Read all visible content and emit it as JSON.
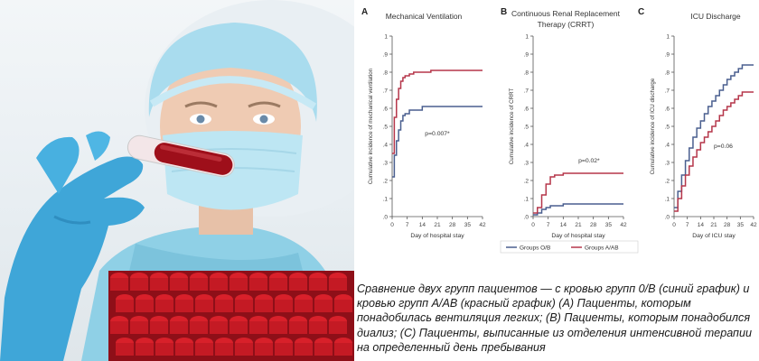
{
  "colors": {
    "group_0b": "#4a5f8f",
    "group_aab": "#b5364a",
    "axis": "#555555",
    "glove": "#3fa6d8",
    "tube_cap": "#d8202a"
  },
  "photo": {
    "description_icon": "lab-worker-photo"
  },
  "chart_data": [
    {
      "type": "line",
      "panel": "A",
      "title": "Mechanical Ventilation",
      "xlabel": "Day of hospital stay",
      "ylabel": "Cumulative incidence of mechanical ventilation",
      "xticks": [
        0,
        7,
        14,
        21,
        28,
        35,
        42
      ],
      "yticks": [
        ".0",
        ".1",
        ".2",
        ".3",
        ".4",
        ".5",
        ".6",
        ".7",
        ".8",
        ".9",
        "1"
      ],
      "xlim": [
        0,
        42
      ],
      "ylim": [
        0,
        1
      ],
      "annotation": "p=0.007*",
      "series": [
        {
          "name": "Groups O/B",
          "color": "#4a5f8f",
          "x": [
            0,
            1,
            1,
            2,
            3,
            4,
            5,
            6,
            8,
            10,
            14,
            18,
            22,
            42
          ],
          "y": [
            0.22,
            0.22,
            0.34,
            0.42,
            0.48,
            0.53,
            0.56,
            0.57,
            0.59,
            0.59,
            0.61,
            0.61,
            0.61,
            0.61
          ]
        },
        {
          "name": "Groups A/AB",
          "color": "#b5364a",
          "x": [
            0,
            1,
            1,
            2,
            3,
            4,
            5,
            6,
            8,
            10,
            14,
            18,
            22,
            42
          ],
          "y": [
            0.35,
            0.35,
            0.55,
            0.65,
            0.71,
            0.75,
            0.77,
            0.78,
            0.79,
            0.8,
            0.8,
            0.81,
            0.81,
            0.81
          ]
        }
      ]
    },
    {
      "type": "line",
      "panel": "B",
      "title": "Continuous Renal Replacement Therapy (CRRT)",
      "xlabel": "Day of hospital stay",
      "ylabel": "Cumulative incidence of CRRT",
      "xticks": [
        0,
        7,
        14,
        21,
        28,
        35,
        42
      ],
      "yticks": [
        ".0",
        ".1",
        ".2",
        ".3",
        ".4",
        ".5",
        ".6",
        ".7",
        ".8",
        ".9",
        "1"
      ],
      "xlim": [
        0,
        42
      ],
      "ylim": [
        0,
        1
      ],
      "annotation": "p=0.02*",
      "legend": [
        "Groups O/B",
        "Groups A/AB"
      ],
      "series": [
        {
          "name": "Groups O/B",
          "color": "#4a5f8f",
          "x": [
            0,
            2,
            4,
            6,
            8,
            10,
            14,
            18,
            22,
            42
          ],
          "y": [
            0.01,
            0.02,
            0.04,
            0.05,
            0.06,
            0.06,
            0.07,
            0.07,
            0.07,
            0.07
          ]
        },
        {
          "name": "Groups A/AB",
          "color": "#b5364a",
          "x": [
            0,
            2,
            4,
            6,
            8,
            10,
            14,
            18,
            22,
            42
          ],
          "y": [
            0.02,
            0.05,
            0.12,
            0.18,
            0.22,
            0.23,
            0.24,
            0.24,
            0.24,
            0.24
          ]
        }
      ]
    },
    {
      "type": "line",
      "panel": "C",
      "title": "ICU Discharge",
      "xlabel": "Day of ICU stay",
      "ylabel": "Cumulative incidence of ICU discharge",
      "xticks": [
        0,
        7,
        14,
        21,
        28,
        35,
        42
      ],
      "yticks": [
        ".0",
        ".1",
        ".2",
        ".3",
        ".4",
        ".5",
        ".6",
        ".7",
        ".8",
        ".9",
        "1"
      ],
      "xlim": [
        0,
        42
      ],
      "ylim": [
        0,
        1
      ],
      "annotation": "p=0.06",
      "series": [
        {
          "name": "Groups O/B",
          "color": "#4a5f8f",
          "x": [
            0,
            2,
            4,
            6,
            8,
            10,
            12,
            14,
            16,
            18,
            20,
            22,
            24,
            26,
            28,
            30,
            32,
            34,
            36,
            38,
            42
          ],
          "y": [
            0.05,
            0.14,
            0.23,
            0.31,
            0.38,
            0.44,
            0.49,
            0.53,
            0.57,
            0.61,
            0.64,
            0.67,
            0.7,
            0.73,
            0.76,
            0.78,
            0.8,
            0.82,
            0.84,
            0.84,
            0.84
          ]
        },
        {
          "name": "Groups A/AB",
          "color": "#b5364a",
          "x": [
            0,
            2,
            4,
            6,
            8,
            10,
            12,
            14,
            16,
            18,
            20,
            22,
            24,
            26,
            28,
            30,
            32,
            34,
            36,
            38,
            42
          ],
          "y": [
            0.03,
            0.1,
            0.17,
            0.23,
            0.28,
            0.33,
            0.37,
            0.41,
            0.44,
            0.47,
            0.5,
            0.53,
            0.56,
            0.59,
            0.61,
            0.63,
            0.65,
            0.67,
            0.69,
            0.69,
            0.69
          ]
        }
      ]
    }
  ],
  "caption": {
    "text": "Сравнение двух групп пациентов — с кровью групп 0/В (синий график) и кровью групп А/АВ (красный график) (А) Пациенты, которым понадобилась вентиляция легких; (В) Пациенты, которым понадобился диализ; (С) Пациенты, выписанные из отделения интенсивной терапии на определенный день пребывания"
  }
}
